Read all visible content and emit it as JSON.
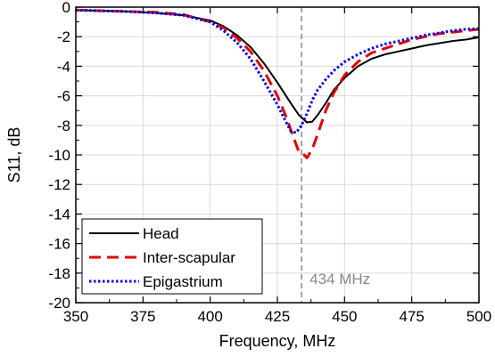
{
  "chart_data": {
    "type": "line",
    "xlabel": "Frequency, MHz",
    "ylabel": "S11, dB",
    "xlim": [
      350,
      500
    ],
    "ylim": [
      -20,
      0
    ],
    "xticks": [
      350,
      375,
      400,
      425,
      450,
      475,
      500
    ],
    "yticks": [
      0,
      -2,
      -4,
      -6,
      -8,
      -10,
      -12,
      -14,
      -16,
      -18,
      -20
    ],
    "grid": true,
    "legend_position": "bottom-left",
    "marker_line": {
      "x": 434,
      "label": "434 MHz",
      "color": "#888888"
    },
    "series": [
      {
        "name": "Head",
        "color": "#000000",
        "style": "solid",
        "points": [
          [
            350,
            -0.2
          ],
          [
            360,
            -0.25
          ],
          [
            370,
            -0.3
          ],
          [
            380,
            -0.4
          ],
          [
            390,
            -0.55
          ],
          [
            400,
            -0.9
          ],
          [
            405,
            -1.3
          ],
          [
            410,
            -1.9
          ],
          [
            415,
            -2.7
          ],
          [
            420,
            -3.8
          ],
          [
            425,
            -5.1
          ],
          [
            430,
            -6.5
          ],
          [
            433,
            -7.3
          ],
          [
            436,
            -7.8
          ],
          [
            438,
            -7.75
          ],
          [
            440,
            -7.3
          ],
          [
            443,
            -6.5
          ],
          [
            446,
            -5.6
          ],
          [
            450,
            -4.8
          ],
          [
            455,
            -4.0
          ],
          [
            460,
            -3.5
          ],
          [
            465,
            -3.2
          ],
          [
            470,
            -3.0
          ],
          [
            475,
            -2.8
          ],
          [
            480,
            -2.6
          ],
          [
            485,
            -2.45
          ],
          [
            490,
            -2.3
          ],
          [
            495,
            -2.2
          ],
          [
            500,
            -2.05
          ]
        ]
      },
      {
        "name": "Inter-scapular",
        "color": "#e00000",
        "style": "dashed",
        "points": [
          [
            350,
            -0.2
          ],
          [
            360,
            -0.25
          ],
          [
            370,
            -0.3
          ],
          [
            380,
            -0.35
          ],
          [
            390,
            -0.5
          ],
          [
            400,
            -1.0
          ],
          [
            405,
            -1.4
          ],
          [
            410,
            -2.1
          ],
          [
            415,
            -3.0
          ],
          [
            420,
            -4.3
          ],
          [
            425,
            -6.0
          ],
          [
            428,
            -7.3
          ],
          [
            431,
            -8.8
          ],
          [
            433,
            -9.8
          ],
          [
            434,
            -9.9
          ],
          [
            435,
            -10.0
          ],
          [
            436,
            -10.2
          ],
          [
            438,
            -9.6
          ],
          [
            440,
            -8.6
          ],
          [
            443,
            -7.0
          ],
          [
            446,
            -5.8
          ],
          [
            450,
            -4.6
          ],
          [
            455,
            -3.7
          ],
          [
            460,
            -3.1
          ],
          [
            465,
            -2.8
          ],
          [
            470,
            -2.5
          ],
          [
            475,
            -2.2
          ],
          [
            480,
            -2.0
          ],
          [
            485,
            -1.8
          ],
          [
            490,
            -1.7
          ],
          [
            495,
            -1.6
          ],
          [
            500,
            -1.5
          ]
        ]
      },
      {
        "name": "Epigastrium",
        "color": "#0000ee",
        "style": "dotted",
        "points": [
          [
            350,
            -0.2
          ],
          [
            360,
            -0.25
          ],
          [
            370,
            -0.3
          ],
          [
            380,
            -0.4
          ],
          [
            390,
            -0.55
          ],
          [
            400,
            -1.0
          ],
          [
            405,
            -1.6
          ],
          [
            410,
            -2.4
          ],
          [
            415,
            -3.5
          ],
          [
            420,
            -5.0
          ],
          [
            425,
            -6.6
          ],
          [
            428,
            -7.7
          ],
          [
            430,
            -8.4
          ],
          [
            432,
            -8.5
          ],
          [
            434,
            -8.0
          ],
          [
            436,
            -7.2
          ],
          [
            438,
            -6.3
          ],
          [
            440,
            -5.6
          ],
          [
            443,
            -4.9
          ],
          [
            446,
            -4.3
          ],
          [
            450,
            -3.7
          ],
          [
            455,
            -3.2
          ],
          [
            460,
            -2.8
          ],
          [
            465,
            -2.5
          ],
          [
            470,
            -2.3
          ],
          [
            475,
            -2.1
          ],
          [
            480,
            -1.9
          ],
          [
            485,
            -1.75
          ],
          [
            490,
            -1.6
          ],
          [
            495,
            -1.5
          ],
          [
            500,
            -1.45
          ]
        ]
      }
    ]
  }
}
